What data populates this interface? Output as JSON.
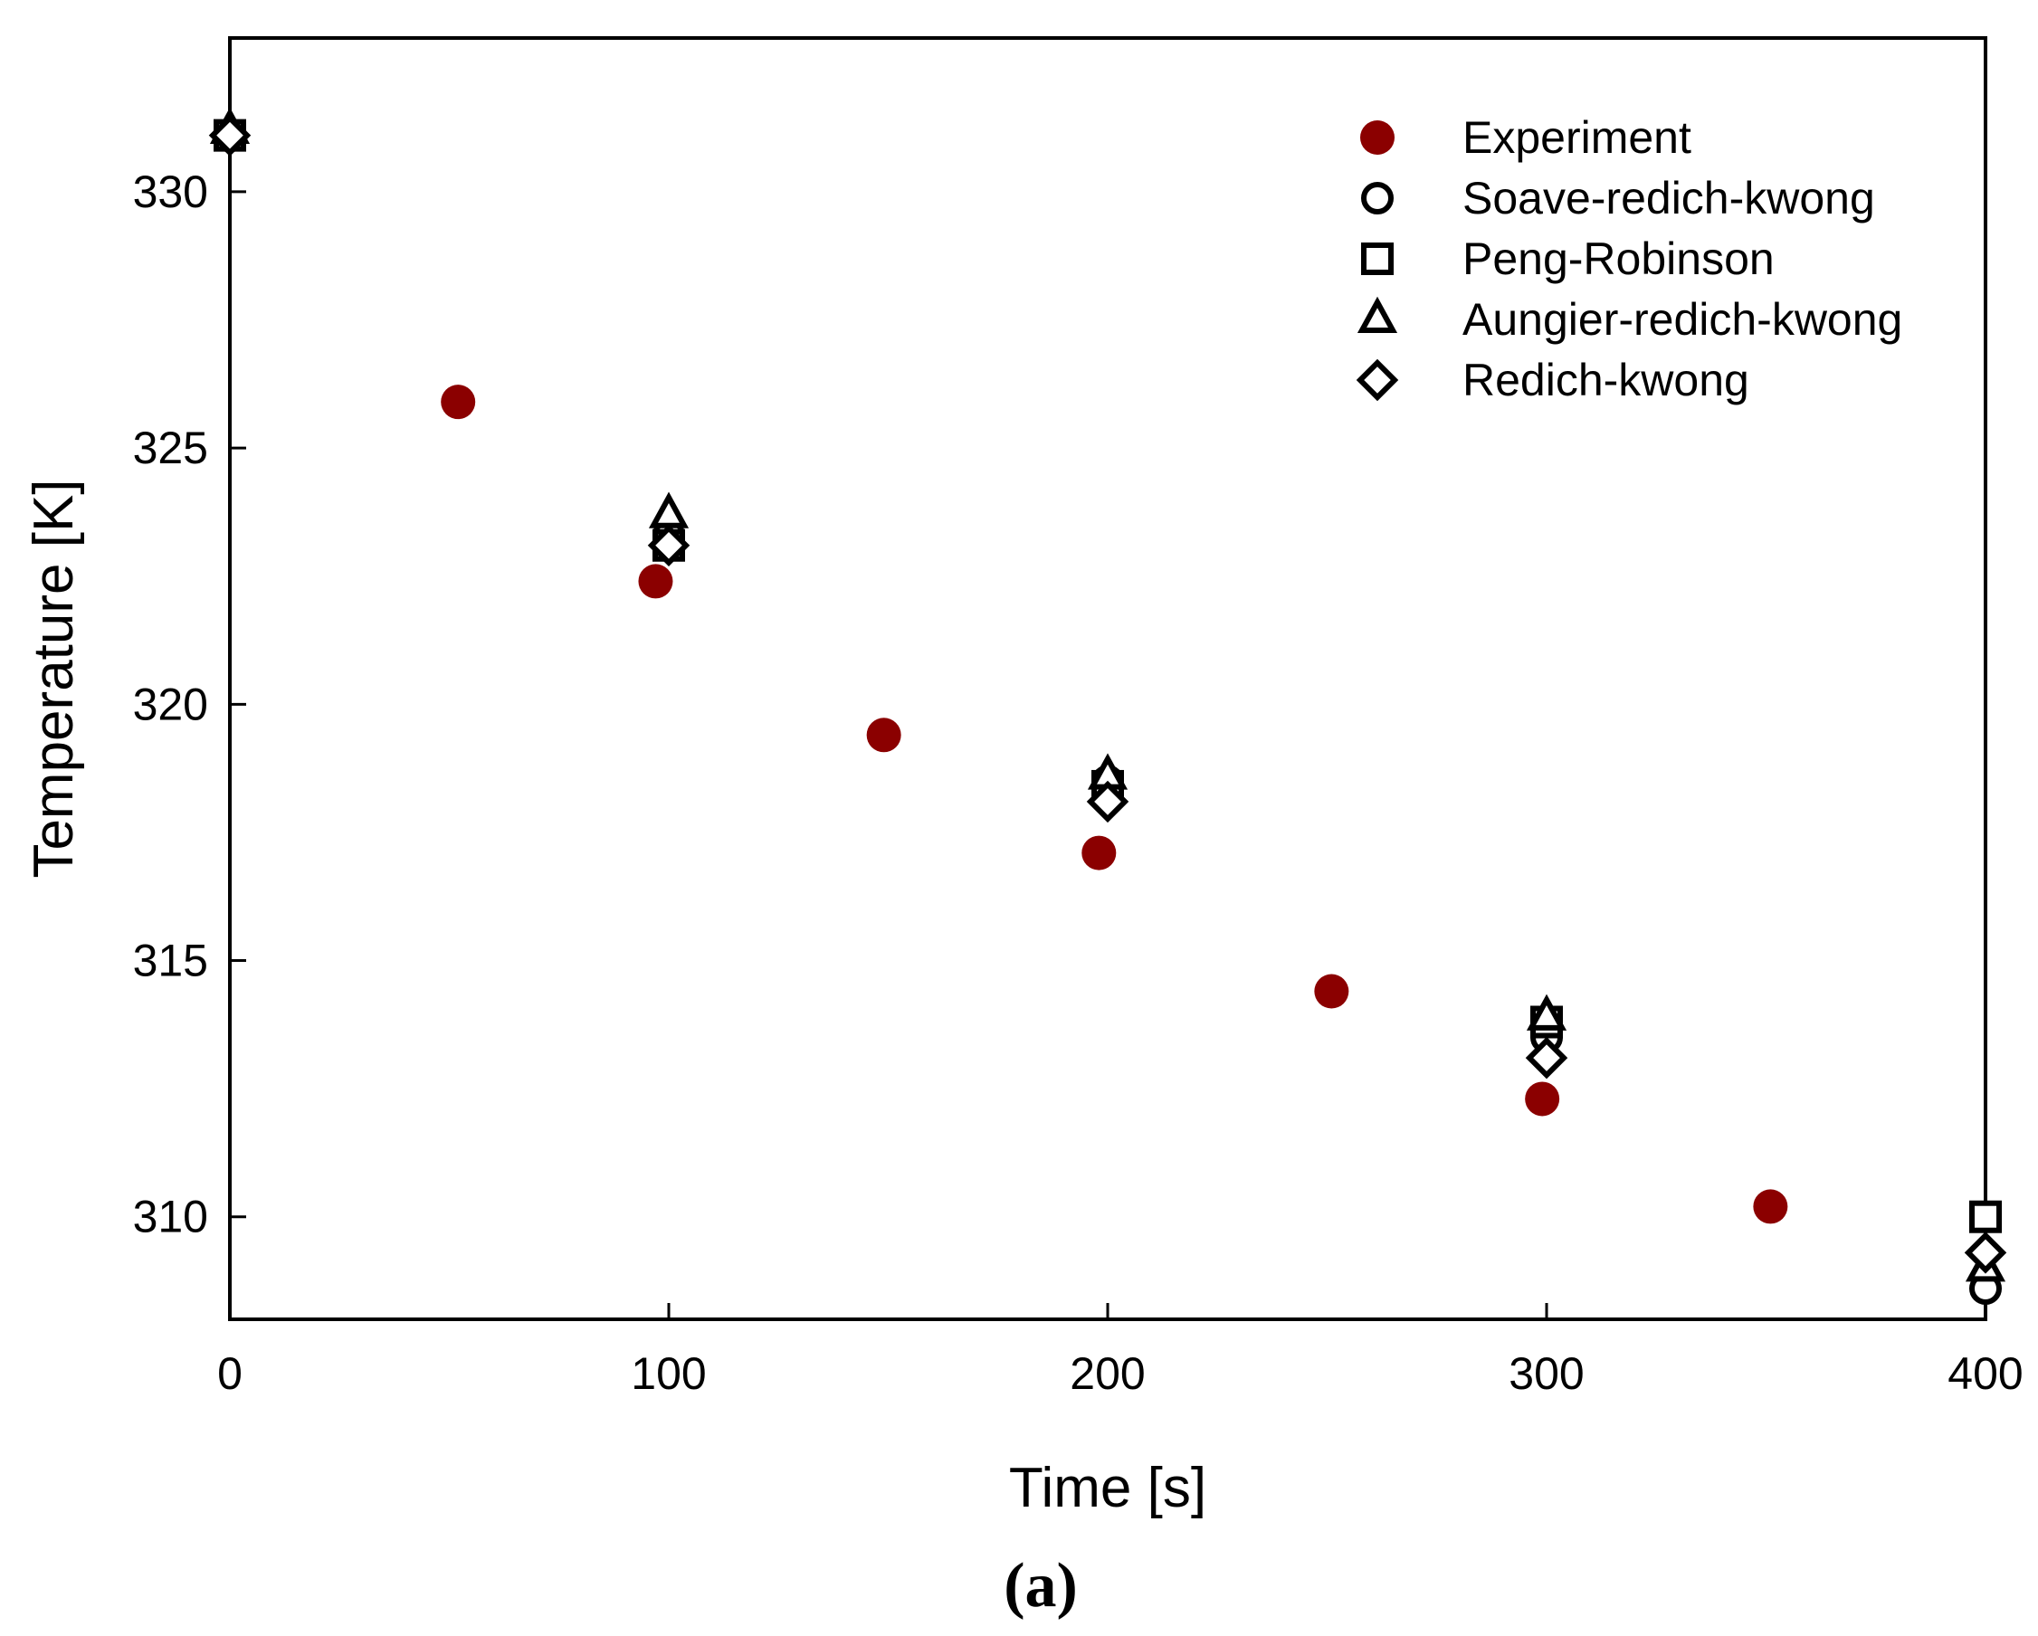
{
  "chart_data": {
    "type": "scatter",
    "xlabel": "Time [s]",
    "ylabel": "Temperature [K]",
    "xlim": [
      0,
      400
    ],
    "ylim": [
      308,
      333
    ],
    "xticks": [
      0,
      100,
      200,
      300,
      400
    ],
    "yticks": [
      310,
      315,
      320,
      325,
      330
    ],
    "grid": false,
    "legend_position": "top-right",
    "panel_label": "(a)",
    "series": [
      {
        "name": "Experiment",
        "marker": "filled-circle",
        "color": "#8B0000",
        "points": [
          [
            0,
            331.1
          ],
          [
            52,
            325.9
          ],
          [
            97,
            322.4
          ],
          [
            149,
            319.4
          ],
          [
            198,
            317.1
          ],
          [
            251,
            314.4
          ],
          [
            299,
            312.3
          ],
          [
            351,
            310.2
          ]
        ]
      },
      {
        "name": "Soave-redich-kwong",
        "marker": "open-circle",
        "color": "#000000",
        "points": [
          [
            0,
            331.1
          ],
          [
            100,
            323.3
          ],
          [
            200,
            318.5
          ],
          [
            300,
            313.5
          ],
          [
            400,
            308.6
          ]
        ]
      },
      {
        "name": "Peng-Robinson",
        "marker": "open-square",
        "color": "#000000",
        "points": [
          [
            0,
            331.1
          ],
          [
            100,
            323.1
          ],
          [
            200,
            318.4
          ],
          [
            300,
            313.8
          ],
          [
            400,
            310.0
          ]
        ]
      },
      {
        "name": "Aungier-redich-kwong",
        "marker": "open-triangle",
        "color": "#000000",
        "points": [
          [
            0,
            331.2
          ],
          [
            100,
            323.7
          ],
          [
            200,
            318.6
          ],
          [
            300,
            313.9
          ],
          [
            400,
            309.0
          ]
        ]
      },
      {
        "name": "Redich-kwong",
        "marker": "open-diamond",
        "color": "#000000",
        "points": [
          [
            0,
            331.1
          ],
          [
            100,
            323.1
          ],
          [
            200,
            318.1
          ],
          [
            300,
            313.1
          ],
          [
            400,
            309.3
          ]
        ]
      }
    ]
  }
}
